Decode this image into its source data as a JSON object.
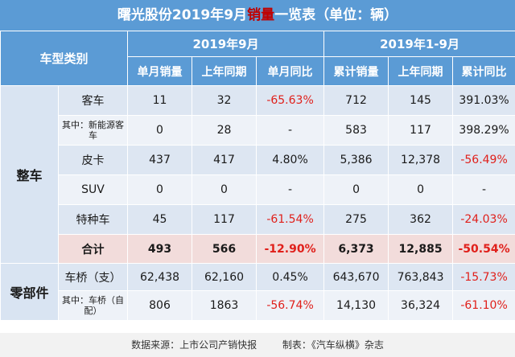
{
  "title": {
    "prefix": "曙光股份2019年9月",
    "highlight": "销量",
    "suffix": "一览表（单位：辆）"
  },
  "header": {
    "category_label": "车型类别",
    "group1": "2019年9月",
    "group2": "2019年1-9月",
    "cols": [
      "单月销量",
      "上年同期",
      "单月同比",
      "累计销量",
      "上年同期",
      "累计同比"
    ]
  },
  "categories": {
    "vehicle": "整车",
    "parts": "零部件"
  },
  "rows": [
    {
      "name": "客车",
      "cells": [
        "11",
        "32",
        "-65.63%",
        "712",
        "145",
        "391.03%"
      ]
    },
    {
      "name": "其中：新能源客车",
      "cells": [
        "0",
        "28",
        "-",
        "583",
        "117",
        "398.29%"
      ]
    },
    {
      "name": "皮卡",
      "cells": [
        "437",
        "417",
        "4.80%",
        "5,386",
        "12,378",
        "-56.49%"
      ]
    },
    {
      "name": "SUV",
      "cells": [
        "0",
        "0",
        "-",
        "0",
        "0",
        "-"
      ]
    },
    {
      "name": "特种车",
      "cells": [
        "45",
        "117",
        "-61.54%",
        "275",
        "362",
        "-24.03%"
      ]
    },
    {
      "name": "合计",
      "cells": [
        "493",
        "566",
        "-12.90%",
        "6,373",
        "12,885",
        "-50.54%"
      ]
    },
    {
      "name": "车桥（支）",
      "cells": [
        "62,438",
        "62,160",
        "0.45%",
        "643,670",
        "763,843",
        "-15.73%"
      ]
    },
    {
      "name": "其中：车桥（自配）",
      "cells": [
        "806",
        "1863",
        "-56.74%",
        "14,130",
        "36,324",
        "-61.10%"
      ]
    }
  ],
  "footer": {
    "source": "数据来源：上市公司产销快报",
    "maker": "制表：《汽车纵横》杂志"
  },
  "colors": {
    "header_blue": "#5b9bd5",
    "negative_red": "#e0201b",
    "total_row_pink": "#f2dcdb"
  }
}
